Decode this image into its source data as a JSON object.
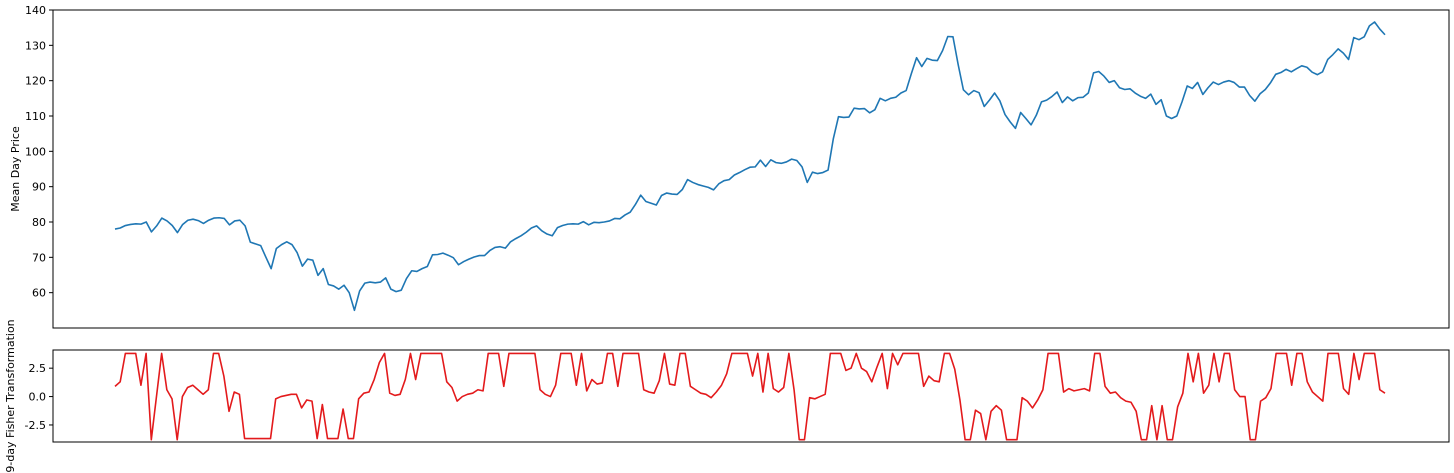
{
  "chart_data": [
    {
      "type": "line",
      "ylabel": "Mean Day Price",
      "xlabel": "",
      "ylim": [
        50,
        140
      ],
      "yticks": [
        "60",
        "70",
        "80",
        "90",
        "100",
        "110",
        "120",
        "130",
        "140"
      ],
      "grid": false,
      "color": "#1f77b4",
      "series": [
        {
          "values": [
            78.0,
            78.3,
            79.0,
            79.3,
            79.5,
            79.4,
            80.0,
            77.2,
            78.9,
            81.1,
            80.3,
            79.0,
            77.0,
            79.3,
            80.5,
            80.8,
            80.4,
            79.6,
            80.5,
            81.1,
            81.2,
            81.0,
            79.2,
            80.3,
            80.5,
            78.9,
            74.3,
            73.8,
            73.3,
            70.0,
            66.8,
            72.5,
            73.6,
            74.4,
            73.6,
            71.3,
            67.5,
            69.5,
            69.2,
            64.9,
            66.8,
            62.3,
            61.9,
            61.0,
            62.1,
            60.0,
            55.0,
            60.5,
            62.7,
            63.0,
            62.8,
            63.0,
            64.2,
            61.0,
            60.3,
            60.7,
            64.0,
            66.2,
            66.0,
            66.8,
            67.4,
            70.7,
            70.8,
            71.2,
            70.6,
            69.9,
            67.9,
            68.8,
            69.5,
            70.1,
            70.5,
            70.5,
            71.9,
            72.8,
            73.0,
            72.6,
            74.4,
            75.3,
            76.1,
            77.1,
            78.3,
            78.9,
            77.5,
            76.6,
            76.1,
            78.4,
            79.0,
            79.4,
            79.5,
            79.4,
            80.1,
            79.2,
            79.9,
            79.8,
            80.0,
            80.3,
            81.0,
            80.9,
            82.0,
            82.8,
            85.0,
            87.6,
            85.8,
            85.3,
            84.8,
            87.5,
            88.2,
            87.9,
            87.8,
            89.2,
            92.0,
            91.2,
            90.6,
            90.2,
            89.8,
            89.1,
            90.8,
            91.7,
            92.0,
            93.3,
            94.0,
            94.8,
            95.5,
            95.6,
            97.5,
            95.7,
            97.6,
            96.8,
            96.6,
            97.0,
            97.8,
            97.4,
            95.6,
            91.2,
            94.1,
            93.7,
            94.0,
            94.7,
            103.5,
            109.8,
            109.6,
            109.7,
            112.2,
            112.0,
            112.1,
            110.9,
            111.8,
            115.0,
            114.3,
            115.0,
            115.3,
            116.5,
            117.2,
            122.0,
            126.5,
            124.0,
            126.3,
            125.8,
            125.7,
            128.5,
            132.5,
            132.4,
            124.5,
            117.4,
            116.0,
            117.2,
            116.6,
            112.7,
            114.5,
            116.5,
            114.3,
            110.4,
            108.3,
            106.5,
            111.0,
            109.3,
            107.5,
            110.2,
            114.0,
            114.5,
            115.5,
            116.8,
            113.8,
            115.4,
            114.3,
            115.2,
            115.3,
            116.5,
            122.2,
            122.6,
            121.3,
            119.5,
            120.0,
            118.0,
            117.5,
            117.7,
            116.5,
            115.6,
            115.0,
            116.2,
            113.3,
            114.6,
            110.0,
            109.3,
            110.0,
            114.0,
            118.5,
            117.8,
            119.5,
            116.1,
            118.0,
            119.6,
            118.9,
            119.6,
            120.0,
            119.5,
            118.2,
            118.2,
            115.8,
            114.2,
            116.3,
            117.5,
            119.4,
            121.8,
            122.3,
            123.2,
            122.5,
            123.4,
            124.2,
            123.8,
            122.4,
            121.7,
            122.5,
            126.0,
            127.4,
            129.0,
            127.8,
            126.0,
            132.2,
            131.6,
            132.4,
            135.5,
            136.6,
            134.6,
            133.0
          ]
        }
      ]
    },
    {
      "type": "line",
      "ylabel": "9-day Fisher Transformation",
      "xlabel": "",
      "ylim": [
        -4.0,
        4.1
      ],
      "yticks": [
        "-2.5",
        "0.0",
        "2.5"
      ],
      "grid": false,
      "color": "#e31a1c",
      "series": [
        {
          "values": [
            0.9,
            1.3,
            3.8,
            3.8,
            3.8,
            1.0,
            3.8,
            -3.8,
            0.0,
            3.8,
            0.6,
            -0.2,
            -3.8,
            0.0,
            0.8,
            1.0,
            0.6,
            0.2,
            0.6,
            3.8,
            3.8,
            1.8,
            -1.3,
            0.4,
            0.2,
            -3.7,
            -3.7,
            -3.7,
            -3.7,
            -3.7,
            -3.7,
            -0.2,
            0.0,
            0.1,
            0.2,
            0.2,
            -1.0,
            -0.3,
            -0.4,
            -3.7,
            -0.7,
            -3.7,
            -3.7,
            -3.7,
            -1.1,
            -3.7,
            -3.7,
            -0.2,
            0.3,
            0.4,
            1.5,
            3.0,
            3.8,
            0.3,
            0.1,
            0.2,
            1.5,
            3.8,
            1.5,
            3.8,
            3.8,
            3.8,
            3.8,
            3.8,
            1.3,
            0.8,
            -0.4,
            0.0,
            0.2,
            0.3,
            0.6,
            0.5,
            3.8,
            3.8,
            3.8,
            0.9,
            3.8,
            3.8,
            3.8,
            3.8,
            3.8,
            3.8,
            0.6,
            0.2,
            0.0,
            1.0,
            3.8,
            3.8,
            3.8,
            1.0,
            3.8,
            0.5,
            1.5,
            1.1,
            1.2,
            3.8,
            3.8,
            0.9,
            3.8,
            3.8,
            3.8,
            3.8,
            0.6,
            0.4,
            0.3,
            1.4,
            3.8,
            1.1,
            1.0,
            3.8,
            3.8,
            0.9,
            0.6,
            0.3,
            0.2,
            -0.1,
            0.4,
            1.0,
            2.0,
            3.8,
            3.8,
            3.8,
            3.8,
            1.8,
            3.8,
            0.4,
            3.8,
            0.7,
            0.4,
            0.8,
            3.8,
            0.6,
            -3.8,
            -3.8,
            -0.1,
            -0.2,
            0.0,
            0.2,
            3.8,
            3.8,
            3.8,
            2.3,
            2.5,
            3.8,
            2.5,
            2.2,
            1.3,
            2.6,
            3.8,
            0.7,
            3.8,
            2.8,
            3.8,
            3.8,
            3.8,
            3.8,
            0.9,
            1.8,
            1.4,
            1.3,
            3.8,
            3.8,
            2.4,
            -0.3,
            -3.8,
            -3.8,
            -1.2,
            -1.5,
            -3.8,
            -1.3,
            -0.8,
            -1.2,
            -3.8,
            -3.8,
            -3.8,
            -0.1,
            -0.4,
            -1.0,
            -0.3,
            0.6,
            3.8,
            3.8,
            3.8,
            0.4,
            0.7,
            0.5,
            0.6,
            0.7,
            0.5,
            3.8,
            3.8,
            0.9,
            0.3,
            0.4,
            -0.1,
            -0.4,
            -0.5,
            -1.3,
            -3.8,
            -3.8,
            -0.8,
            -3.8,
            -0.8,
            -3.8,
            -3.8,
            -0.9,
            0.3,
            3.8,
            1.3,
            3.8,
            0.3,
            1.0,
            3.8,
            1.3,
            3.8,
            3.8,
            0.6,
            0.0,
            0.0,
            -3.8,
            -3.8,
            -0.4,
            -0.1,
            0.7,
            3.8,
            3.8,
            3.8,
            1.0,
            3.8,
            3.8,
            1.3,
            0.4,
            0.0,
            -0.4,
            3.8,
            3.8,
            3.8,
            0.7,
            0.2,
            3.8,
            1.5,
            3.8,
            3.8,
            3.8,
            0.6,
            0.3
          ]
        }
      ]
    }
  ]
}
